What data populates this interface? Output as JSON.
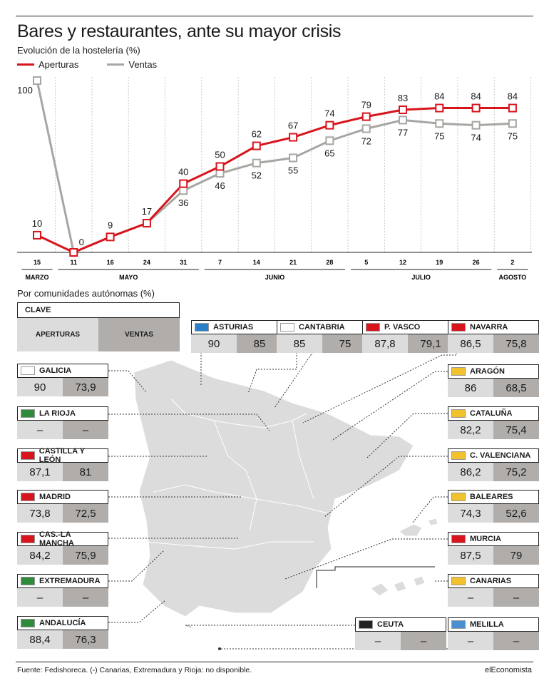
{
  "title": "Bares y restaurantes, ante su mayor crisis",
  "subtitle": "Evolución de la hostelería (%)",
  "legend": {
    "aperturas": "Aperturas",
    "ventas": "Ventas"
  },
  "colors": {
    "aperturas": "#d8141c",
    "ventas": "#a8a6a3",
    "cell_aperturas": "#dcdcdc",
    "cell_ventas": "#b0adaa"
  },
  "chart_data": {
    "type": "line",
    "x": [
      "15",
      "11",
      "16",
      "24",
      "31",
      "7",
      "14",
      "21",
      "28",
      "5",
      "12",
      "19",
      "26",
      "2"
    ],
    "months": [
      {
        "label": "MARZO",
        "from": 0,
        "to": 0
      },
      {
        "label": "MAYO",
        "from": 1,
        "to": 4
      },
      {
        "label": "JUNIO",
        "from": 5,
        "to": 8
      },
      {
        "label": "JULIO",
        "from": 9,
        "to": 12
      },
      {
        "label": "AGOSTO",
        "from": 13,
        "to": 13
      }
    ],
    "series": [
      {
        "name": "Aperturas",
        "values": [
          10,
          0,
          9,
          17,
          40,
          50,
          62,
          67,
          74,
          79,
          83,
          84,
          84,
          84
        ]
      },
      {
        "name": "Ventas",
        "values": [
          100,
          0,
          null,
          null,
          36,
          46,
          52,
          55,
          65,
          72,
          77,
          75,
          74,
          75
        ]
      }
    ],
    "ventas_labels": [
      100,
      null,
      null,
      null,
      36,
      46,
      52,
      55,
      65,
      72,
      77,
      75,
      74,
      75
    ],
    "ylim": [
      0,
      100
    ],
    "grid": "vertical dashed"
  },
  "section2_title": "Por comunidades autónomas (%)",
  "clave": {
    "label": "CLAVE",
    "aperturas": "APERTURAS",
    "ventas": "VENTAS"
  },
  "regions": [
    {
      "id": "asturias",
      "name": "ASTURIAS",
      "aperturas": "90",
      "ventas": "85"
    },
    {
      "id": "cantabria",
      "name": "CANTABRIA",
      "aperturas": "85",
      "ventas": "75"
    },
    {
      "id": "pvasco",
      "name": "P. VASCO",
      "aperturas": "87,8",
      "ventas": "79,1"
    },
    {
      "id": "navarra",
      "name": "NAVARRA",
      "aperturas": "86,5",
      "ventas": "75,8"
    },
    {
      "id": "galicia",
      "name": "GALICIA",
      "aperturas": "90",
      "ventas": "73,9"
    },
    {
      "id": "larioja",
      "name": "LA RIOJA",
      "aperturas": "–",
      "ventas": "–"
    },
    {
      "id": "castillaleon",
      "name": "CASTILLA Y LEÓN",
      "aperturas": "87,1",
      "ventas": "81"
    },
    {
      "id": "madrid",
      "name": "MADRID",
      "aperturas": "73,8",
      "ventas": "72,5"
    },
    {
      "id": "caslamancha",
      "name": "CAS.-LA MANCHA",
      "aperturas": "84,2",
      "ventas": "75,9"
    },
    {
      "id": "extremadura",
      "name": "EXTREMADURA",
      "aperturas": "–",
      "ventas": "–"
    },
    {
      "id": "andalucia",
      "name": "ANDALUCÍA",
      "aperturas": "88,4",
      "ventas": "76,3"
    },
    {
      "id": "aragon",
      "name": "ARAGÓN",
      "aperturas": "86",
      "ventas": "68,5"
    },
    {
      "id": "cataluna",
      "name": "CATALUÑA",
      "aperturas": "82,2",
      "ventas": "75,4"
    },
    {
      "id": "cvalenciana",
      "name": "C. VALENCIANA",
      "aperturas": "86,2",
      "ventas": "75,2"
    },
    {
      "id": "baleares",
      "name": "BALEARES",
      "aperturas": "74,3",
      "ventas": "52,6"
    },
    {
      "id": "murcia",
      "name": "MURCIA",
      "aperturas": "87,5",
      "ventas": "79"
    },
    {
      "id": "canarias",
      "name": "CANARIAS",
      "aperturas": "–",
      "ventas": "–"
    },
    {
      "id": "ceuta",
      "name": "CEUTA",
      "aperturas": "–",
      "ventas": "–"
    },
    {
      "id": "melilla",
      "name": "MELILLA",
      "aperturas": "–",
      "ventas": "–"
    }
  ],
  "source": "Fuente: Fedishoreca. (-) Canarias, Extremadura y Rioja: no disponible.",
  "brand": "elEconomista"
}
